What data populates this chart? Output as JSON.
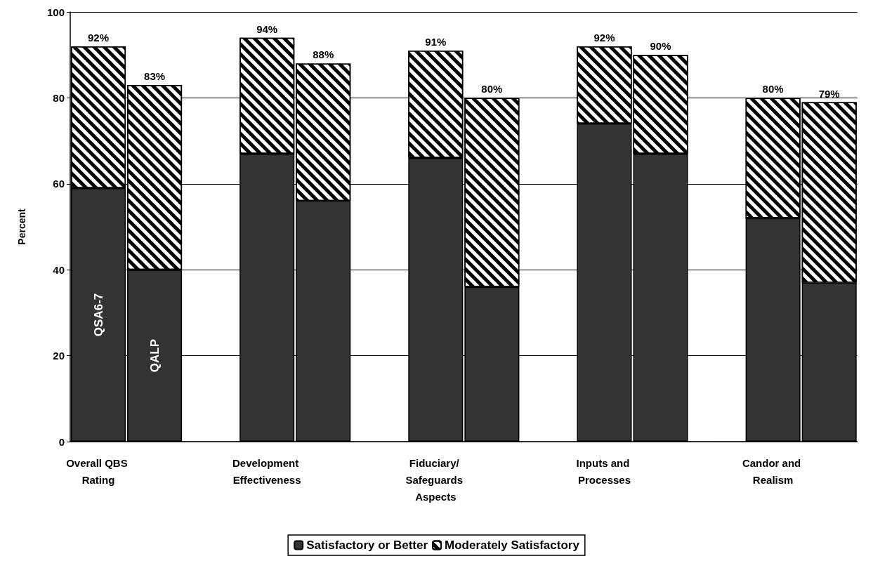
{
  "chart_data": {
    "type": "bar",
    "stacked": true,
    "ylabel": "Percent",
    "categories": [
      "Overall QBS Rating",
      null,
      null,
      "Development Effectiveness",
      null,
      null,
      "Fiduciary/ Safeguards Aspects",
      null,
      null,
      "Inputs and Processes",
      null,
      null,
      "Candor and Realism",
      null
    ],
    "series": [
      {
        "name": "Satisfactory or Better",
        "color": "#333333",
        "values": [
          59,
          40,
          null,
          67,
          56,
          null,
          66,
          36,
          null,
          74,
          67,
          null,
          52,
          37
        ]
      },
      {
        "name": "Moderately Satisfactory",
        "color": "#ffffff",
        "values": [
          33,
          43,
          null,
          27,
          32,
          null,
          25,
          44,
          null,
          18,
          23,
          null,
          28,
          42
        ]
      }
    ],
    "totals": [
      "92%",
      "83%",
      null,
      "94%",
      "88%",
      null,
      "91%",
      "80%",
      null,
      "92%",
      "90%",
      null,
      "80%",
      "79%"
    ],
    "annotations": [
      "QSA6-7",
      "QALP"
    ],
    "ylim": [
      0,
      100
    ],
    "yticks": [
      0,
      20,
      40,
      60,
      80,
      100
    ],
    "grid": "y",
    "legend": "bottom"
  }
}
